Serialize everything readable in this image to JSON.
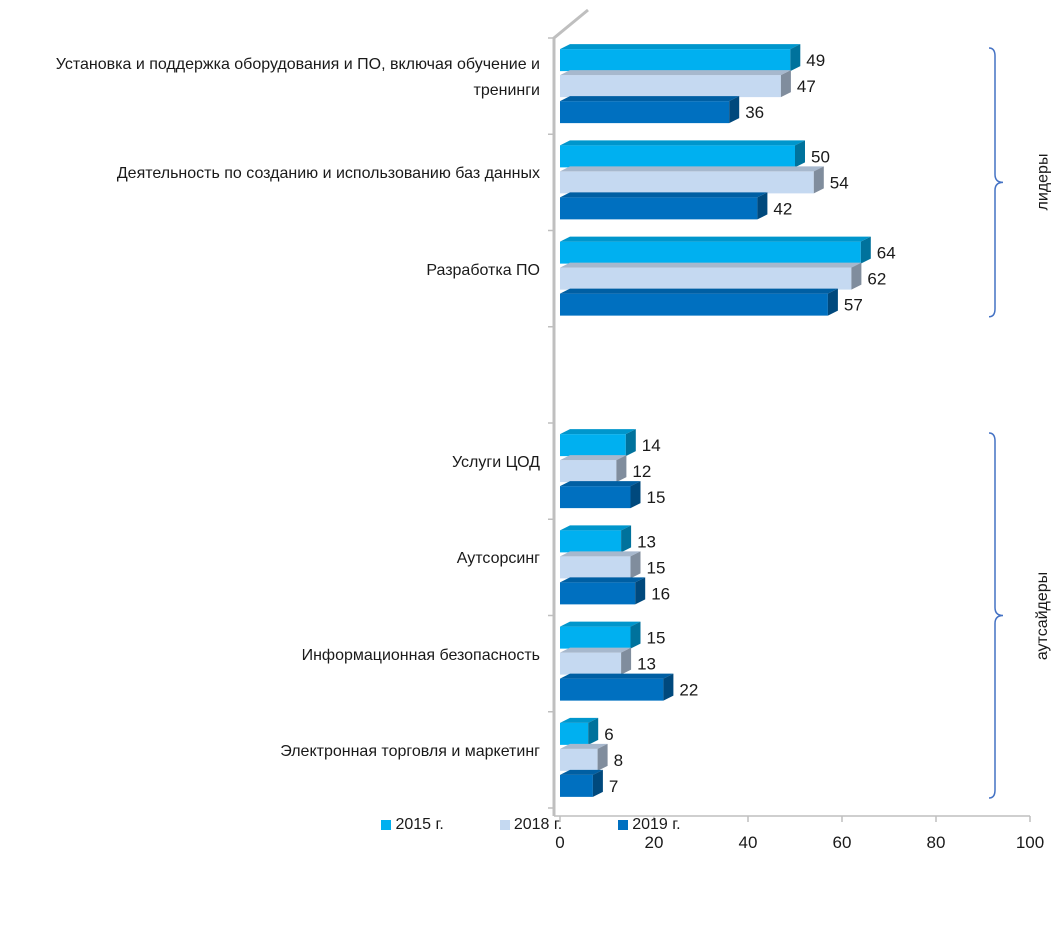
{
  "chart_data": {
    "type": "bar",
    "orientation": "horizontal",
    "categories": [
      "Установка и поддержка оборудования и ПО, включая обучение и тренинги",
      "Деятельность по созданию и использованию баз данных",
      "Разработка ПО",
      "",
      "Услуги ЦОД",
      "Аутсорсинг",
      "Информационная безопасность",
      "Электронная торговля и маркетинг"
    ],
    "series": [
      {
        "name": "2015 г.",
        "color": "#00b0f0",
        "values": [
          49,
          50,
          64,
          null,
          14,
          13,
          15,
          6
        ]
      },
      {
        "name": "2018 г.",
        "color": "#c5d9f1",
        "values": [
          47,
          54,
          62,
          null,
          12,
          15,
          13,
          8
        ]
      },
      {
        "name": "2019 г.",
        "color": "#0070c0",
        "values": [
          36,
          42,
          57,
          null,
          15,
          16,
          22,
          7
        ]
      }
    ],
    "xlim": [
      0,
      100
    ],
    "x_ticks": [
      "0",
      "20",
      "40",
      "60",
      "80",
      "100"
    ],
    "data_labels": true,
    "legend_position": "bottom",
    "groups": [
      {
        "label": "лидеры",
        "categories": [
          0,
          1,
          2
        ]
      },
      {
        "label": "аутсайдеры",
        "categories": [
          4,
          5,
          6,
          7
        ]
      }
    ]
  }
}
